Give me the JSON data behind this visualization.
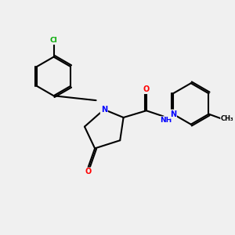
{
  "bg_color": "#f0f0f0",
  "bond_color": "#000000",
  "atom_colors": {
    "C": "#000000",
    "N": "#0000ff",
    "O": "#ff0000",
    "Cl": "#00aa00",
    "H": "#000000"
  },
  "figsize": [
    3.0,
    3.0
  ],
  "dpi": 100
}
